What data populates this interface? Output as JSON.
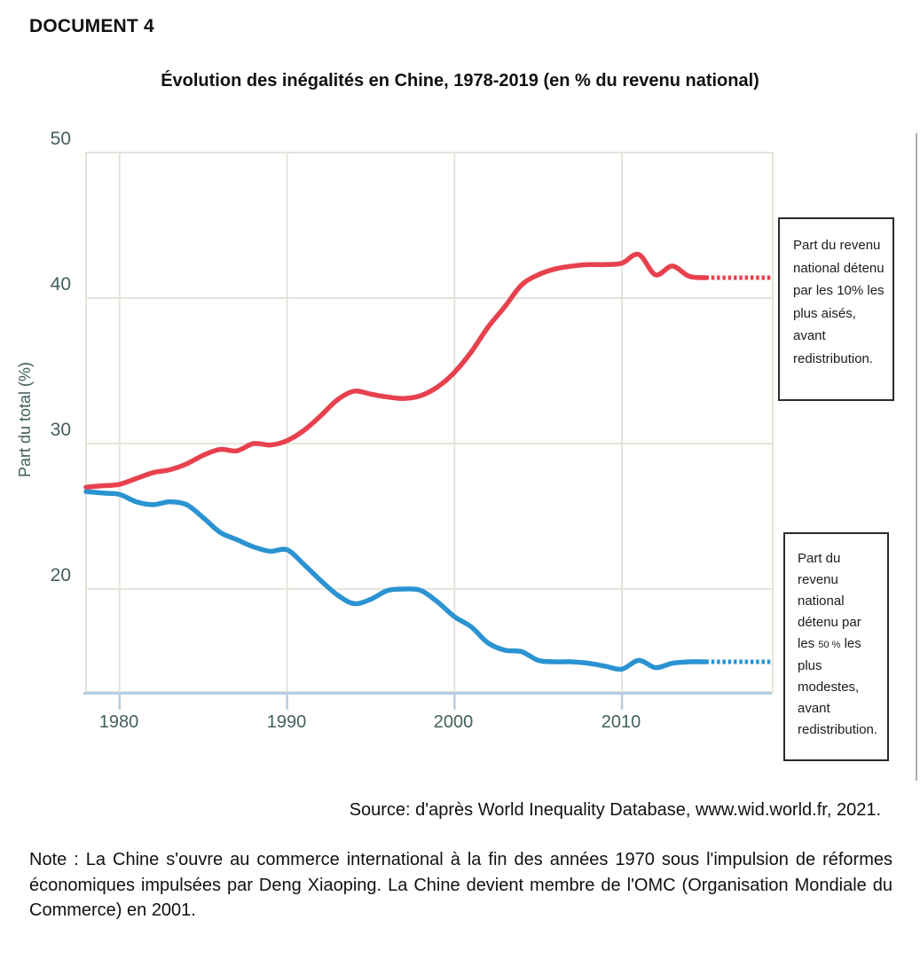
{
  "document_label": "DOCUMENT 4",
  "chart_data": {
    "type": "line",
    "title": "Évolution des inégalités en Chine, 1978-2019 (en % du revenu national)",
    "xlabel": "",
    "ylabel": "Part du total (%)",
    "xlim": [
      1978,
      2019
    ],
    "ylim": [
      12.9,
      50
    ],
    "x_ticks": [
      1980,
      1990,
      2000,
      2010
    ],
    "y_ticks": [
      50,
      40,
      30,
      20
    ],
    "grid": true,
    "legend_position": "right-callout-boxes",
    "colors": {
      "grid": "#e5e4da",
      "axis_line": "#b7cee2",
      "tick_label": "#43605d"
    },
    "series": [
      {
        "name": "top10",
        "label": "Part du revenu national détenu par les 10% les plus aisés, avant redistribution.",
        "color": "#e8414e",
        "x": [
          1978,
          1979,
          1980,
          1981,
          1982,
          1983,
          1984,
          1985,
          1986,
          1987,
          1988,
          1989,
          1990,
          1991,
          1992,
          1993,
          1994,
          1995,
          1996,
          1997,
          1998,
          1999,
          2000,
          2001,
          2002,
          2003,
          2004,
          2005,
          2006,
          2007,
          2008,
          2009,
          2010,
          2011,
          2012,
          2013,
          2014,
          2015
        ],
        "y": [
          27.0,
          27.1,
          27.2,
          27.6,
          28.0,
          28.2,
          28.6,
          29.2,
          29.6,
          29.5,
          30.0,
          29.9,
          30.2,
          30.9,
          31.9,
          33.0,
          33.6,
          33.4,
          33.2,
          33.1,
          33.3,
          33.9,
          34.9,
          36.3,
          38.0,
          39.4,
          40.9,
          41.6,
          42.0,
          42.2,
          42.3,
          42.3,
          42.4,
          43.0,
          41.6,
          42.2,
          41.5,
          41.4
        ],
        "dotted_x": [
          2015,
          2019
        ],
        "dotted_y": [
          41.4,
          41.4
        ]
      },
      {
        "name": "bottom50",
        "label": "Part du revenu national détenu par les 50 % les plus modestes, avant redistribution.",
        "color": "#2b93d1",
        "x": [
          1978,
          1979,
          1980,
          1981,
          1982,
          1983,
          1984,
          1985,
          1986,
          1987,
          1988,
          1989,
          1990,
          1991,
          1992,
          1993,
          1994,
          1995,
          1996,
          1997,
          1998,
          1999,
          2000,
          2001,
          2002,
          2003,
          2004,
          2005,
          2006,
          2007,
          2008,
          2009,
          2010,
          2011,
          2012,
          2013,
          2014,
          2015
        ],
        "y": [
          26.7,
          26.6,
          26.5,
          26.0,
          25.8,
          26.0,
          25.8,
          24.9,
          23.9,
          23.4,
          22.9,
          22.6,
          22.7,
          21.7,
          20.6,
          19.6,
          19.0,
          19.3,
          19.9,
          20.0,
          19.9,
          19.1,
          18.1,
          17.4,
          16.3,
          15.8,
          15.7,
          15.1,
          15.0,
          15.0,
          14.9,
          14.7,
          14.5,
          15.1,
          14.6,
          14.9,
          15.0,
          15.0
        ],
        "dotted_x": [
          2015,
          2019
        ],
        "dotted_y": [
          15.0,
          15.0
        ]
      }
    ]
  },
  "callout_top10": {
    "text": "Part du revenu national détenu par les 10% les plus aisés, avant redistribution."
  },
  "callout_bottom50": {
    "part1": "Part du revenu national détenu par les ",
    "small": "50 %",
    "part2": " les plus modestes, avant redistribution."
  },
  "source": "Source: d'après World Inequality Database, www.wid.world.fr, 2021.",
  "note": "Note : La Chine s'ouvre au commerce international à la fin des années 1970 sous l'impulsion de réformes économiques impulsées par Deng Xiaoping. La Chine devient membre de l'OMC (Organisation Mondiale du Commerce) en 2001."
}
